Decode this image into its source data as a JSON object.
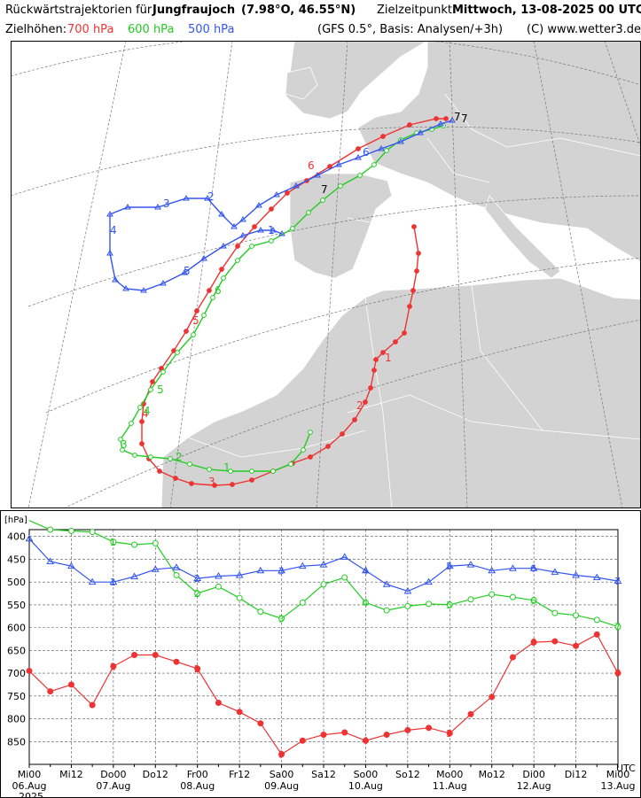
{
  "header": {
    "title_prefix": "Rückwärtstrajektorien für",
    "location": "Jungfraujoch",
    "coords": "(7.98°O, 46.55°N)",
    "target_label": "Zielzeitpunkt:",
    "target_time": "Mittwoch, 13-08-2025   00 UTC",
    "levels_label": "Zielhöhen:",
    "level_700": "700 hPa",
    "level_600": "600 hPa",
    "level_500": "500 hPa",
    "model_info": "(GFS 0.5°, Basis: Analysen/+3h)",
    "copyright": "(C) www.wetter3.de"
  },
  "colors": {
    "700": "#ee3333",
    "600": "#22cc22",
    "500": "#3355ee",
    "land": "#d3d3d3",
    "sea": "#ffffff"
  },
  "map": {
    "marker_labels": [
      "1",
      "2",
      "3",
      "4",
      "5",
      "6",
      "7"
    ]
  },
  "chart_data": {
    "type": "line",
    "ylabel": "[hPa]",
    "y_ticks": [
      400,
      450,
      500,
      550,
      600,
      650,
      700,
      750,
      800,
      850
    ],
    "ylim": [
      900,
      385
    ],
    "x_tick_labels": [
      "Mi00",
      "Mi12",
      "Do00",
      "Do12",
      "Fr00",
      "Fr12",
      "Sa00",
      "Sa12",
      "So00",
      "So12",
      "Mo00",
      "Mo12",
      "Di00",
      "Di12",
      "Mi00"
    ],
    "date_labels": [
      "06.Aug",
      "07.Aug",
      "08.Aug",
      "09.Aug",
      "10.Aug",
      "11.Aug",
      "12.Aug",
      "13.Aug"
    ],
    "year_label": "2025",
    "utc_label": "UTC",
    "x_hours_before_target": [
      -168,
      -162,
      -156,
      -150,
      -144,
      -138,
      -132,
      -126,
      -120,
      -114,
      -108,
      -102,
      -96,
      -90,
      -84,
      -78,
      -72,
      -66,
      -60,
      -54,
      -48,
      -42,
      -36,
      -30,
      -24,
      -18,
      -12,
      -6,
      0
    ],
    "grid": true,
    "series": [
      {
        "name": "700 hPa",
        "color": "#ee3333",
        "marker": "circle",
        "day_labels": [
          "1",
          "2",
          "3",
          "4",
          "5",
          "6",
          "7"
        ],
        "values": [
          695,
          740,
          725,
          770,
          685,
          660,
          660,
          675,
          690,
          765,
          785,
          810,
          878,
          848,
          835,
          830,
          848,
          835,
          825,
          820,
          832,
          790,
          752,
          665,
          632,
          630,
          640,
          615,
          700
        ]
      },
      {
        "name": "600 hPa",
        "color": "#22cc22",
        "marker": "circle",
        "day_labels": [
          "1",
          "2",
          "3",
          "4",
          "5",
          "6",
          "7"
        ],
        "values": [
          365,
          385,
          388,
          390,
          412,
          418,
          415,
          485,
          525,
          510,
          535,
          565,
          580,
          545,
          505,
          490,
          545,
          562,
          553,
          548,
          550,
          538,
          527,
          533,
          540,
          568,
          573,
          583,
          598
        ]
      },
      {
        "name": "500 hPa",
        "color": "#3355ee",
        "marker": "triangle",
        "day_labels": [
          "1",
          "2",
          "3",
          "4",
          "5",
          "6",
          "7"
        ],
        "values": [
          405,
          455,
          465,
          500,
          500,
          488,
          472,
          468,
          492,
          487,
          485,
          475,
          475,
          465,
          462,
          445,
          475,
          505,
          520,
          500,
          465,
          462,
          475,
          470,
          470,
          478,
          485,
          490,
          498
        ]
      }
    ]
  }
}
